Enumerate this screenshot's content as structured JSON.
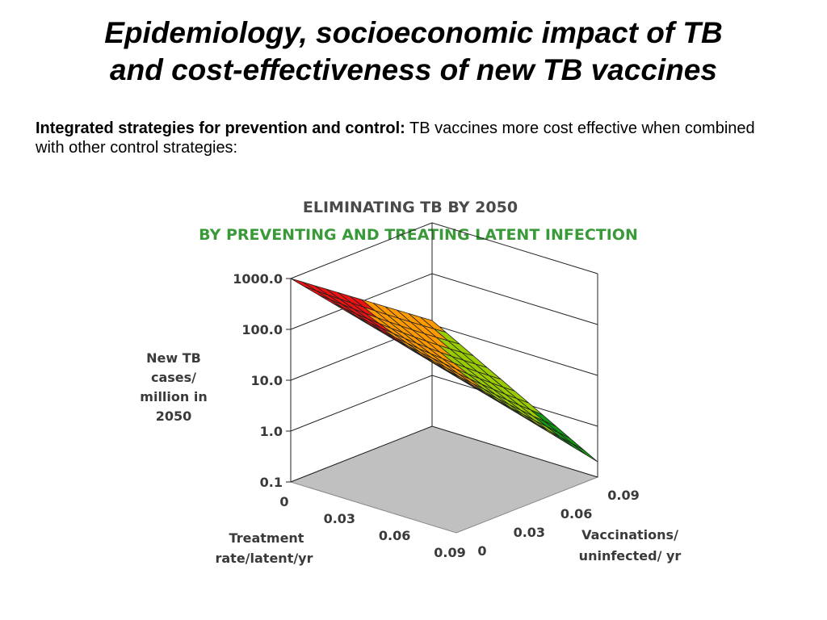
{
  "slide": {
    "title_line1": "Epidemiology, socioeconomic impact of TB",
    "title_line2": "and cost-effectiveness of new TB vaccines",
    "intro_bold": "Integrated strategies for prevention and control:",
    "intro_text": " TB vaccines more cost effective when combined with other control strategies:"
  },
  "colors": {
    "red": "#ee1111",
    "orange": "#ff9900",
    "yellowgreen": "#99cc00",
    "darkgreen": "#119911",
    "floor": "#c0c0c0"
  },
  "chart_data": {
    "type": "surface",
    "title": "ELIMINATING TB BY 2050",
    "subtitle": "BY PREVENTING AND TREATING LATENT INFECTION",
    "zlabel": [
      "New TB",
      "cases/",
      "million in",
      "2050"
    ],
    "z_scale": "log",
    "z_ticks": [
      "1000.0",
      "100.0",
      "10.0",
      "1.0",
      "0.1"
    ],
    "z_tick_values": [
      1000,
      100,
      10,
      1,
      0.1
    ],
    "xlabel": [
      "Treatment",
      "rate/latent/yr"
    ],
    "x_ticks": [
      "0",
      "0.03",
      "0.06",
      "0.09"
    ],
    "x_tick_values": [
      0,
      0.03,
      0.06,
      0.09
    ],
    "ylabel": [
      "Vaccinations/",
      "uninfected/ yr"
    ],
    "y_ticks": [
      "0",
      "0.03",
      "0.06",
      "0.09"
    ],
    "y_tick_values": [
      0,
      0.03,
      0.06,
      0.09
    ],
    "color_bands": [
      {
        "from": 100,
        "to": 1000,
        "color": "red"
      },
      {
        "from": 10,
        "to": 100,
        "color": "orange"
      },
      {
        "from": 1,
        "to": 10,
        "color": "yellowgreen"
      },
      {
        "from": 0.1,
        "to": 1,
        "color": "darkgreen"
      }
    ],
    "corner_values": [
      {
        "treatment": 0,
        "vaccination": 0,
        "cases": 1000
      },
      {
        "treatment": 0,
        "vaccination": 0.09,
        "cases": 12
      },
      {
        "treatment": 0.09,
        "vaccination": 0,
        "cases": 120
      },
      {
        "treatment": 0.09,
        "vaccination": 0.09,
        "cases": 0.2
      }
    ]
  }
}
